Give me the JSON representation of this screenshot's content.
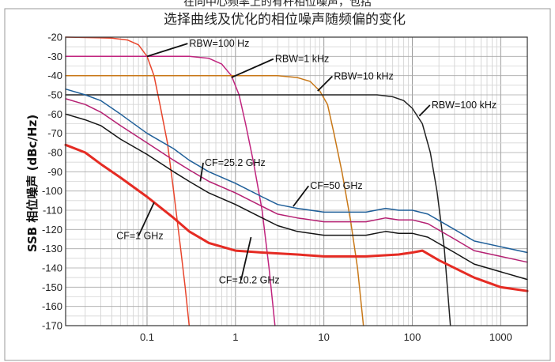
{
  "caption_top": "在同中心频率上的有杆相位噪声，包括",
  "chart_data": {
    "type": "line",
    "title": "选择曲线及优化的相位噪声随频偏的变化",
    "xlabel": "",
    "ylabel": "SSB 相位噪声 (dBc/Hz)",
    "xscale": "log",
    "xlim": [
      0.012,
      2000
    ],
    "ylim": [
      -170,
      -20
    ],
    "xticks": [
      0.1,
      1,
      10,
      100,
      1000
    ],
    "xtick_labels": [
      "0.1",
      "1",
      "10",
      "100",
      "1000"
    ],
    "yticks": [
      -20,
      -30,
      -40,
      -50,
      -60,
      -70,
      -80,
      -90,
      -100,
      -110,
      -120,
      -130,
      -140,
      -150,
      -160,
      -170
    ],
    "ytick_labels": [
      "-20",
      "-30",
      "-40",
      "-50",
      "-60",
      "-70",
      "-80",
      "-90",
      "-100",
      "-110",
      "-120",
      "-130",
      "-140",
      "-150",
      "-160",
      "-170"
    ],
    "grid": true,
    "legend": "none",
    "colors": {
      "rbw100hz": "#e8452c",
      "rbw1khz": "#c0247e",
      "rbw10khz": "#c87818",
      "rbw100khz": "#222222",
      "cf25": "#1f5f99",
      "cf50": "#b52072",
      "cf10": "#141414",
      "cf1": "#e52b23"
    },
    "series": [
      {
        "name": "RBW=100 Hz",
        "color_key": "rbw100hz",
        "width": 1.5,
        "points": [
          [
            0.012,
            -20
          ],
          [
            0.04,
            -20.5
          ],
          [
            0.06,
            -21.5
          ],
          [
            0.08,
            -24
          ],
          [
            0.1,
            -30
          ],
          [
            0.12,
            -40
          ],
          [
            0.14,
            -55
          ],
          [
            0.17,
            -75
          ],
          [
            0.2,
            -100
          ],
          [
            0.24,
            -130
          ],
          [
            0.27,
            -150
          ],
          [
            0.3,
            -170
          ]
        ]
      },
      {
        "name": "RBW=1 kHz",
        "color_key": "rbw1khz",
        "width": 1.5,
        "points": [
          [
            0.012,
            -30
          ],
          [
            0.3,
            -30
          ],
          [
            0.5,
            -31
          ],
          [
            0.7,
            -34
          ],
          [
            0.9,
            -40
          ],
          [
            1.1,
            -50
          ],
          [
            1.3,
            -65
          ],
          [
            1.6,
            -85
          ],
          [
            2.0,
            -110
          ],
          [
            2.4,
            -140
          ],
          [
            2.8,
            -170
          ]
        ]
      },
      {
        "name": "RBW=10 kHz",
        "color_key": "rbw10khz",
        "width": 1.5,
        "points": [
          [
            0.012,
            -40
          ],
          [
            3,
            -40
          ],
          [
            5,
            -41
          ],
          [
            7,
            -43
          ],
          [
            9,
            -48
          ],
          [
            11,
            -55
          ],
          [
            13,
            -70
          ],
          [
            16,
            -90
          ],
          [
            20,
            -115
          ],
          [
            24,
            -140
          ],
          [
            28,
            -170
          ]
        ]
      },
      {
        "name": "RBW=100 kHz",
        "color_key": "rbw100khz",
        "width": 1.5,
        "points": [
          [
            0.012,
            -50
          ],
          [
            40,
            -50
          ],
          [
            60,
            -51
          ],
          [
            80,
            -53
          ],
          [
            100,
            -57
          ],
          [
            130,
            -65
          ],
          [
            160,
            -80
          ],
          [
            190,
            -100
          ],
          [
            230,
            -130
          ],
          [
            270,
            -170
          ]
        ]
      },
      {
        "name": "CF=25.2 GHz",
        "color_key": "cf25",
        "width": 1.5,
        "points": [
          [
            0.012,
            -47
          ],
          [
            0.02,
            -50
          ],
          [
            0.03,
            -53
          ],
          [
            0.05,
            -60
          ],
          [
            0.1,
            -70
          ],
          [
            0.2,
            -78
          ],
          [
            0.3,
            -84
          ],
          [
            0.5,
            -90
          ],
          [
            1,
            -96
          ],
          [
            2,
            -103
          ],
          [
            3,
            -107
          ],
          [
            5,
            -109
          ],
          [
            10,
            -111
          ],
          [
            20,
            -111
          ],
          [
            30,
            -111
          ],
          [
            50,
            -109
          ],
          [
            70,
            -110
          ],
          [
            100,
            -110
          ],
          [
            150,
            -112
          ],
          [
            300,
            -120
          ],
          [
            500,
            -126
          ],
          [
            1000,
            -129
          ],
          [
            2000,
            -132
          ]
        ]
      },
      {
        "name": "CF=50 GHz",
        "color_key": "cf50",
        "width": 1.5,
        "points": [
          [
            0.012,
            -52
          ],
          [
            0.02,
            -55
          ],
          [
            0.03,
            -59
          ],
          [
            0.05,
            -66
          ],
          [
            0.1,
            -75
          ],
          [
            0.2,
            -84
          ],
          [
            0.3,
            -89
          ],
          [
            0.5,
            -95
          ],
          [
            1,
            -101
          ],
          [
            2,
            -108
          ],
          [
            3,
            -112
          ],
          [
            5,
            -114
          ],
          [
            10,
            -116
          ],
          [
            20,
            -116
          ],
          [
            30,
            -116
          ],
          [
            50,
            -114
          ],
          [
            70,
            -115
          ],
          [
            100,
            -115
          ],
          [
            150,
            -117
          ],
          [
            300,
            -125
          ],
          [
            500,
            -131
          ],
          [
            1000,
            -134
          ],
          [
            2000,
            -137
          ]
        ]
      },
      {
        "name": "CF=10.2 GHz",
        "color_key": "cf10",
        "width": 1.5,
        "points": [
          [
            0.012,
            -60
          ],
          [
            0.02,
            -63
          ],
          [
            0.03,
            -66
          ],
          [
            0.05,
            -73
          ],
          [
            0.1,
            -81
          ],
          [
            0.2,
            -90
          ],
          [
            0.3,
            -95
          ],
          [
            0.5,
            -101
          ],
          [
            1,
            -107
          ],
          [
            2,
            -114
          ],
          [
            3,
            -118
          ],
          [
            5,
            -121
          ],
          [
            10,
            -123
          ],
          [
            20,
            -123
          ],
          [
            30,
            -123
          ],
          [
            50,
            -121
          ],
          [
            70,
            -122
          ],
          [
            100,
            -122
          ],
          [
            150,
            -124
          ],
          [
            300,
            -132
          ],
          [
            500,
            -138
          ],
          [
            1000,
            -142
          ],
          [
            2000,
            -146
          ]
        ]
      },
      {
        "name": "CF=1 GHz",
        "color_key": "cf1",
        "width": 3,
        "points": [
          [
            0.012,
            -76
          ],
          [
            0.02,
            -80
          ],
          [
            0.03,
            -86
          ],
          [
            0.05,
            -93
          ],
          [
            0.1,
            -103
          ],
          [
            0.2,
            -114
          ],
          [
            0.3,
            -121
          ],
          [
            0.5,
            -127
          ],
          [
            1,
            -131
          ],
          [
            2,
            -132
          ],
          [
            5,
            -133
          ],
          [
            10,
            -134
          ],
          [
            30,
            -134
          ],
          [
            70,
            -133
          ],
          [
            100,
            -132
          ],
          [
            130,
            -131
          ],
          [
            200,
            -136
          ],
          [
            500,
            -145
          ],
          [
            1000,
            -150
          ],
          [
            2000,
            -152
          ]
        ]
      }
    ],
    "annotations": [
      {
        "text": "RBW=100 Hz",
        "lx": 0.3,
        "ly": -25,
        "ax": 0.1,
        "ay": -30
      },
      {
        "text": "RBW=1 kHz",
        "lx": 2.8,
        "ly": -33,
        "ax": 0.9,
        "ay": -41
      },
      {
        "text": "RBW=10 kHz",
        "lx": 13,
        "ly": -42,
        "ax": 8.5,
        "ay": -48
      },
      {
        "text": "RBW=100 kHz",
        "lx": 165,
        "ly": -57,
        "ax": 120,
        "ay": -61
      },
      {
        "text": "CF=25.2 GHz",
        "lx": 0.45,
        "ly": -87,
        "ax": 0.4,
        "ay": -95
      },
      {
        "text": "CF=50 GHz",
        "lx": 7,
        "ly": -99,
        "ax": 4.5,
        "ay": -108
      },
      {
        "text": "CF=1 GHz",
        "lx": 0.045,
        "ly": -125,
        "ax": 0.12,
        "ay": -106
      },
      {
        "text": "CF=10.2 GHz",
        "lx": 0.65,
        "ly": -148,
        "ax": 1.5,
        "ay": -124
      }
    ]
  }
}
